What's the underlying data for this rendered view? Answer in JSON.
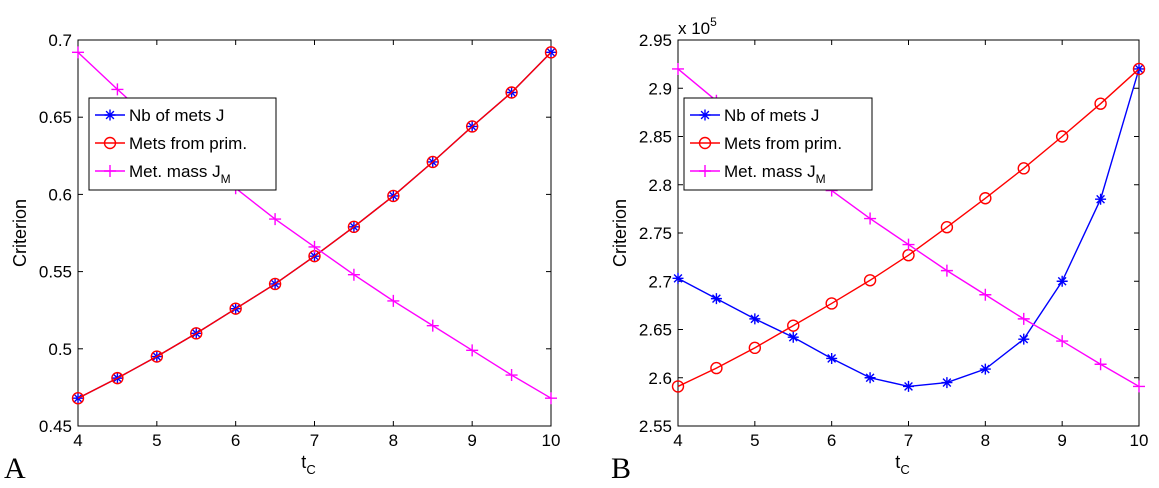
{
  "panel_labels": [
    "A",
    "B"
  ],
  "chart_data": [
    {
      "type": "line",
      "xlabel": "t",
      "xlabel_sub": "C",
      "ylabel": "Criterion",
      "xlim": [
        4,
        10
      ],
      "ylim": [
        0.45,
        0.7
      ],
      "x_ticks": [
        4,
        5,
        6,
        7,
        8,
        9,
        10
      ],
      "y_ticks": [
        0.45,
        0.5,
        0.55,
        0.6,
        0.65,
        0.7
      ],
      "x_tick_labels": [
        "4",
        "5",
        "6",
        "7",
        "8",
        "9",
        "10"
      ],
      "y_tick_labels": [
        "0.45",
        "0.5",
        "0.55",
        "0.6",
        "0.65",
        "0.7"
      ],
      "exponent_label": "",
      "exponent_power": "",
      "legend_position": "top-left",
      "grid": false,
      "x": [
        4,
        4.5,
        5,
        5.5,
        6,
        6.5,
        7,
        7.5,
        8,
        8.5,
        9,
        9.5,
        10
      ],
      "series": [
        {
          "name": "Nb of mets J",
          "name_sub": "",
          "color": "#0000ff",
          "marker": "star",
          "values": [
            0.468,
            0.481,
            0.495,
            0.51,
            0.526,
            0.542,
            0.56,
            0.579,
            0.599,
            0.621,
            0.644,
            0.666,
            0.692
          ]
        },
        {
          "name": "Mets from prim.",
          "name_sub": "",
          "color": "#ff0000",
          "marker": "circle",
          "values": [
            0.468,
            0.481,
            0.495,
            0.51,
            0.526,
            0.542,
            0.56,
            0.579,
            0.599,
            0.621,
            0.644,
            0.666,
            0.692
          ]
        },
        {
          "name": "Met. mass J",
          "name_sub": "M",
          "color": "#ff00ff",
          "marker": "plus",
          "values": [
            0.692,
            0.668,
            0.645,
            0.624,
            0.604,
            0.584,
            0.566,
            0.548,
            0.531,
            0.515,
            0.499,
            0.483,
            0.468
          ]
        }
      ]
    },
    {
      "type": "line",
      "xlabel": "t",
      "xlabel_sub": "C",
      "ylabel": "Criterion",
      "xlim": [
        4,
        10
      ],
      "ylim": [
        2.55,
        2.95
      ],
      "x_ticks": [
        4,
        5,
        6,
        7,
        8,
        9,
        10
      ],
      "y_ticks": [
        2.55,
        2.6,
        2.65,
        2.7,
        2.75,
        2.8,
        2.85,
        2.9,
        2.95
      ],
      "x_tick_labels": [
        "4",
        "5",
        "6",
        "7",
        "8",
        "9",
        "10"
      ],
      "y_tick_labels": [
        "2.55",
        "2.6",
        "2.65",
        "2.7",
        "2.75",
        "2.8",
        "2.85",
        "2.9",
        "2.95"
      ],
      "exponent_label": "x 10",
      "exponent_power": "5",
      "legend_position": "top-left",
      "grid": false,
      "x": [
        4,
        4.5,
        5,
        5.5,
        6,
        6.5,
        7,
        7.5,
        8,
        8.5,
        9,
        9.5,
        10
      ],
      "series": [
        {
          "name": "Nb of mets J",
          "name_sub": "",
          "color": "#0000ff",
          "marker": "star",
          "values": [
            2.703,
            2.682,
            2.661,
            2.642,
            2.62,
            2.6,
            2.591,
            2.595,
            2.609,
            2.64,
            2.7,
            2.785,
            2.92
          ]
        },
        {
          "name": "Mets from prim.",
          "name_sub": "",
          "color": "#ff0000",
          "marker": "circle",
          "values": [
            2.591,
            2.61,
            2.631,
            2.654,
            2.677,
            2.701,
            2.727,
            2.756,
            2.786,
            2.817,
            2.85,
            2.884,
            2.92
          ]
        },
        {
          "name": "Met. mass J",
          "name_sub": "M",
          "color": "#ff00ff",
          "marker": "plus",
          "values": [
            2.92,
            2.887,
            2.855,
            2.824,
            2.794,
            2.765,
            2.738,
            2.711,
            2.686,
            2.661,
            2.638,
            2.614,
            2.591
          ]
        }
      ]
    }
  ]
}
